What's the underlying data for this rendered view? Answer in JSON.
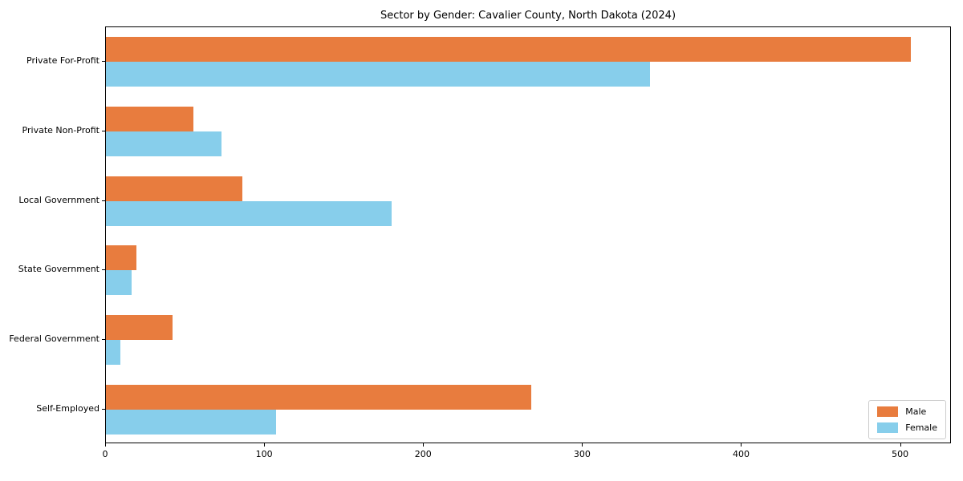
{
  "title": "Sector by Gender: Cavalier County, North Dakota (2024)",
  "colors": {
    "male": "#e87c3e",
    "female": "#87ceeb",
    "spine": "#000000",
    "legend_border": "#cccccc",
    "background": "#ffffff"
  },
  "chart_data": {
    "type": "bar",
    "orientation": "horizontal",
    "title": "Sector by Gender: Cavalier County, North Dakota (2024)",
    "xlabel": "",
    "ylabel": "",
    "categories": [
      "Private For-Profit",
      "Private Non-Profit",
      "Local Government",
      "State Government",
      "Federal Government",
      "Self-Employed"
    ],
    "series": [
      {
        "name": "Male",
        "color": "#e87c3e",
        "values": [
          507,
          55,
          86,
          19,
          42,
          268
        ]
      },
      {
        "name": "Female",
        "color": "#87ceeb",
        "values": [
          343,
          73,
          180,
          16,
          9,
          107
        ]
      }
    ],
    "xlim": [
      0,
      532
    ],
    "xticks": [
      "0",
      "100",
      "200",
      "300",
      "400",
      "500"
    ],
    "grid": false,
    "legend_position": "lower right"
  },
  "legend": {
    "items": [
      {
        "label": "Male"
      },
      {
        "label": "Female"
      }
    ]
  }
}
